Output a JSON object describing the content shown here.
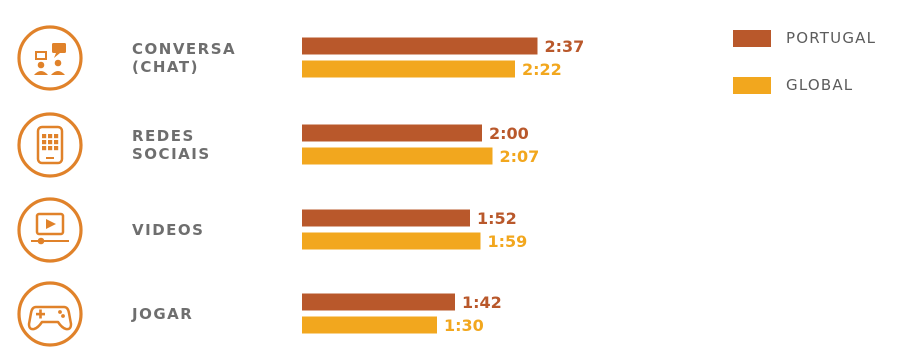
{
  "chart_data": {
    "type": "bar",
    "orientation": "horizontal",
    "categories": [
      "CONVERSA (CHAT)",
      "REDES SOCIAIS",
      "VIDEOS",
      "JOGAR"
    ],
    "category_lines": [
      [
        "CONVERSA",
        "(CHAT)"
      ],
      [
        "REDES",
        "SOCIAIS"
      ],
      [
        "VIDEOS"
      ],
      [
        "JOGAR"
      ]
    ],
    "series": [
      {
        "name": "PORTUGAL",
        "values_minutes": [
          157,
          120,
          112,
          102
        ],
        "labels": [
          "2:37",
          "2:00",
          "1:52",
          "1:42"
        ],
        "color": "#B9582B"
      },
      {
        "name": "GLOBAL",
        "values_minutes": [
          142,
          127,
          119,
          90
        ],
        "labels": [
          "2:22",
          "2:07",
          "1:59",
          "1:30"
        ],
        "color": "#F2A71E"
      }
    ],
    "icons": [
      "chat-icon",
      "social-apps-icon",
      "video-player-icon",
      "gamepad-icon"
    ],
    "legend": "top-right",
    "grid": false
  },
  "colors": {
    "icon": "#E0822A",
    "category_text": "#6E6E6E",
    "legend_text": "#5C5C5C"
  }
}
